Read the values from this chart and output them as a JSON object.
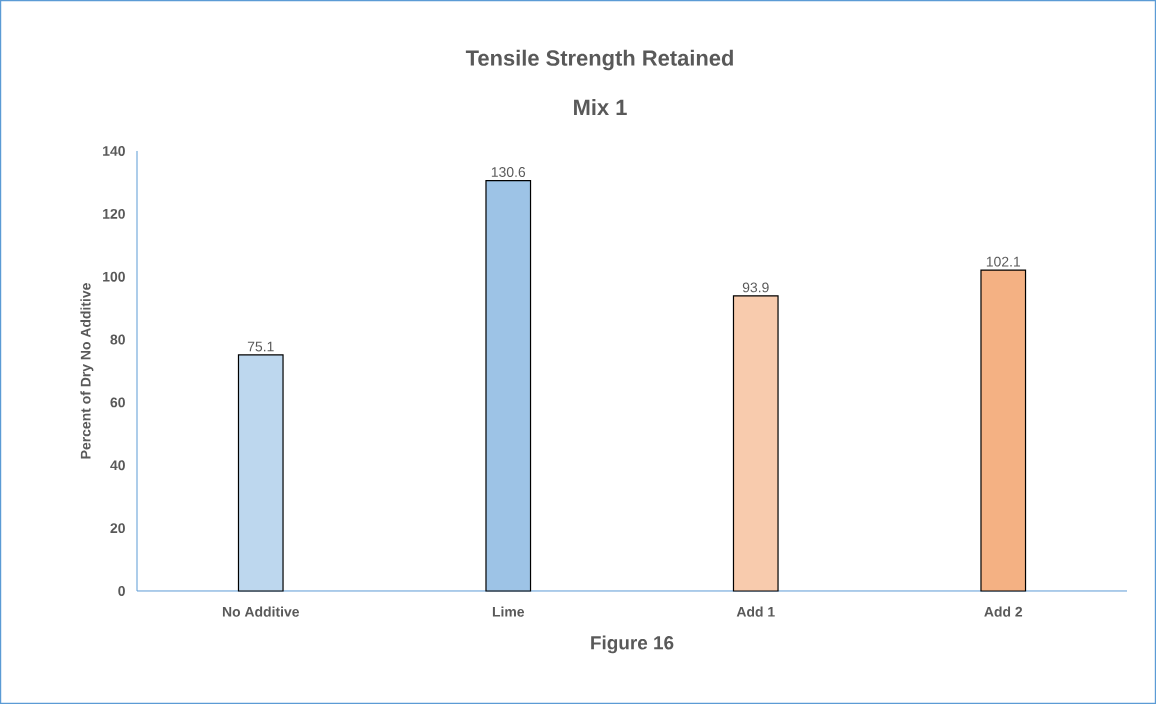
{
  "chart_data": {
    "type": "bar",
    "title": "Tensile Strength Retained",
    "subtitle": "Mix 1",
    "xlabel": "Figure 16",
    "ylabel": "Percent of Dry No Additive",
    "categories": [
      "No Additive",
      "Lime",
      "Add 1",
      "Add 2"
    ],
    "values": [
      75.1,
      130.6,
      93.9,
      102.1
    ],
    "colors": [
      "#bdd7ee",
      "#9dc3e6",
      "#f8cbad",
      "#f4b183"
    ],
    "ylim": [
      0,
      140
    ],
    "yticks": [
      0,
      20,
      40,
      60,
      80,
      100,
      120,
      140
    ],
    "data_labels": true,
    "grid": false
  }
}
